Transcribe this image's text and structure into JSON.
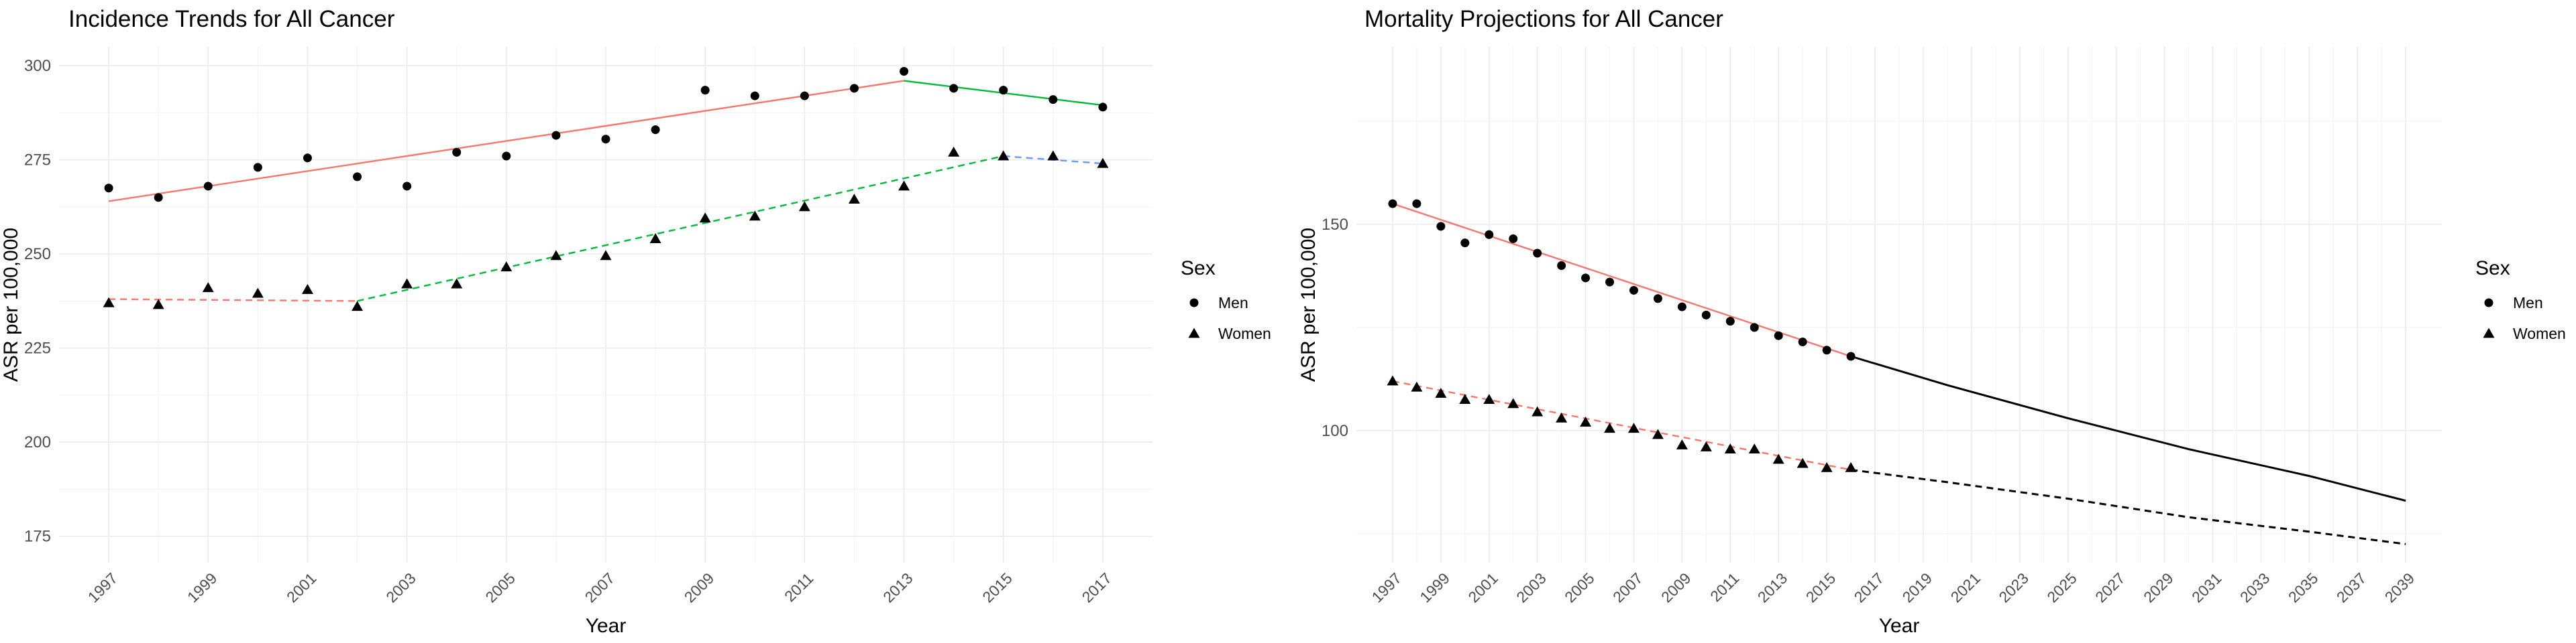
{
  "chart_data": [
    {
      "type": "scatter",
      "title": "Incidence Trends for All Cancer",
      "xlabel": "Year",
      "ylabel": "ASR per 100,000",
      "xlim": [
        1996,
        2018
      ],
      "ylim": [
        168,
        305
      ],
      "xticks": [
        1997,
        1999,
        2001,
        2003,
        2005,
        2007,
        2009,
        2011,
        2013,
        2015,
        2017
      ],
      "yticks": [
        175,
        200,
        225,
        250,
        275,
        300
      ],
      "grid": true,
      "legend": {
        "title": "Sex",
        "position": "right",
        "entries": [
          {
            "label": "Men",
            "shape": "circle"
          },
          {
            "label": "Women",
            "shape": "triangle"
          }
        ]
      },
      "series": [
        {
          "name": "Men",
          "shape": "circle",
          "x": [
            1997,
            1998,
            1999,
            2000,
            2001,
            2002,
            2003,
            2004,
            2005,
            2006,
            2007,
            2008,
            2009,
            2010,
            2011,
            2012,
            2013,
            2014,
            2015,
            2016,
            2017
          ],
          "y": [
            267.5,
            265,
            268,
            273,
            275.5,
            270.5,
            268,
            277,
            276,
            281.5,
            280.5,
            283,
            293.5,
            292,
            292,
            294,
            298.5,
            294,
            293.5,
            291,
            289
          ]
        },
        {
          "name": "Women",
          "shape": "triangle",
          "x": [
            1997,
            1998,
            1999,
            2000,
            2001,
            2002,
            2003,
            2004,
            2005,
            2006,
            2007,
            2008,
            2009,
            2010,
            2011,
            2012,
            2013,
            2014,
            2015,
            2016,
            2017
          ],
          "y": [
            237,
            236.5,
            241,
            239.5,
            240.5,
            236,
            242,
            242,
            246.5,
            249.5,
            249.5,
            254,
            259.5,
            260,
            262.5,
            264.5,
            268,
            277,
            276,
            276,
            274
          ]
        }
      ],
      "trend_lines": [
        {
          "series": "Men",
          "color": "#F8766D",
          "dash": "solid",
          "points": [
            [
              1997,
              264
            ],
            [
              2013,
              296
            ]
          ]
        },
        {
          "series": "Men",
          "color": "#00BA38",
          "dash": "solid",
          "points": [
            [
              2013,
              296
            ],
            [
              2017,
              289.5
            ]
          ]
        },
        {
          "series": "Women",
          "color": "#F8766D",
          "dash": "dashed",
          "points": [
            [
              1997,
              238
            ],
            [
              2002,
              237.5
            ]
          ]
        },
        {
          "series": "Women",
          "color": "#00BA38",
          "dash": "dashed",
          "points": [
            [
              2002,
              237.5
            ],
            [
              2015,
              276
            ]
          ]
        },
        {
          "series": "Women",
          "color": "#619CFF",
          "dash": "dashed",
          "points": [
            [
              2015,
              276
            ],
            [
              2017,
              274
            ]
          ]
        }
      ]
    },
    {
      "type": "scatter",
      "title": "Mortality Projections for All Cancer",
      "xlabel": "Year",
      "ylabel": "ASR per 100,000",
      "xlim": [
        1995.5,
        2040.5
      ],
      "ylim": [
        68,
        193
      ],
      "xticks": [
        1997,
        1999,
        2001,
        2003,
        2005,
        2007,
        2009,
        2011,
        2013,
        2015,
        2017,
        2019,
        2021,
        2023,
        2025,
        2027,
        2029,
        2031,
        2033,
        2035,
        2037,
        2039
      ],
      "yticks": [
        100,
        150
      ],
      "grid": true,
      "legend": {
        "title": "Sex",
        "position": "right",
        "entries": [
          {
            "label": "Men",
            "shape": "circle"
          },
          {
            "label": "Women",
            "shape": "triangle"
          }
        ]
      },
      "series": [
        {
          "name": "Men",
          "shape": "circle",
          "x": [
            1997,
            1998,
            1999,
            2000,
            2001,
            2002,
            2003,
            2004,
            2005,
            2006,
            2007,
            2008,
            2009,
            2010,
            2011,
            2012,
            2013,
            2014,
            2015,
            2016
          ],
          "y": [
            155,
            155,
            149.5,
            145.5,
            147.5,
            146.5,
            143,
            140,
            137,
            136,
            134,
            132,
            130,
            128,
            126.5,
            125,
            123,
            121.5,
            119.5,
            118
          ]
        },
        {
          "name": "Women",
          "shape": "triangle",
          "x": [
            1997,
            1998,
            1999,
            2000,
            2001,
            2002,
            2003,
            2004,
            2005,
            2006,
            2007,
            2008,
            2009,
            2010,
            2011,
            2012,
            2013,
            2014,
            2015,
            2016
          ],
          "y": [
            112,
            110.5,
            109,
            107.5,
            107.5,
            106.5,
            104.5,
            103,
            102,
            100.5,
            100.5,
            99,
            96.5,
            96,
            95.5,
            95.5,
            93,
            92,
            91,
            91
          ]
        }
      ],
      "trend_lines": [
        {
          "series": "Men",
          "color": "#F8766D",
          "dash": "solid",
          "points": [
            [
              1997,
              155
            ],
            [
              2016,
              118
            ]
          ]
        },
        {
          "series": "Men",
          "color": "#000000",
          "dash": "solid",
          "points": [
            [
              2016,
              118
            ],
            [
              2020,
              111
            ],
            [
              2025,
              103
            ],
            [
              2030,
              95.5
            ],
            [
              2035,
              89
            ],
            [
              2039,
              83
            ]
          ]
        },
        {
          "series": "Women",
          "color": "#F8766D",
          "dash": "dashed",
          "points": [
            [
              1997,
              112
            ],
            [
              2016,
              90.5
            ]
          ]
        },
        {
          "series": "Women",
          "color": "#000000",
          "dash": "dashed",
          "points": [
            [
              2016,
              90.5
            ],
            [
              2020,
              87.5
            ],
            [
              2025,
              83.5
            ],
            [
              2030,
              79
            ],
            [
              2035,
              75.5
            ],
            [
              2039,
              72.5
            ]
          ]
        }
      ]
    }
  ]
}
